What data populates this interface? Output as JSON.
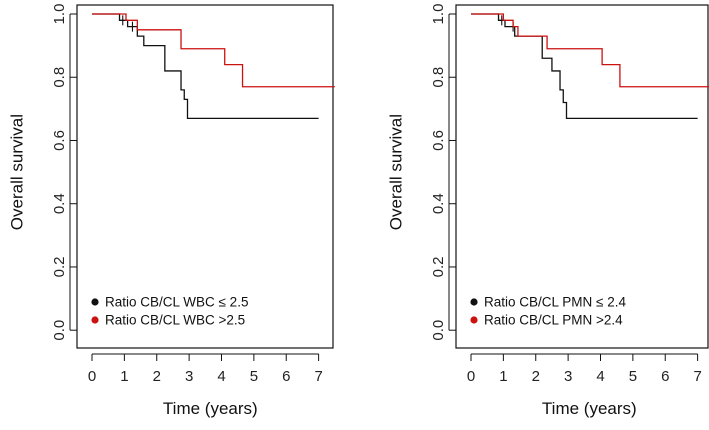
{
  "chart_data": [
    {
      "type": "line",
      "subtype": "kaplan-meier step",
      "title": "",
      "xlabel": "Time (years)",
      "ylabel": "Overall survival",
      "xlim": [
        0,
        7.5
      ],
      "ylim": [
        0,
        1.0
      ],
      "xticks": [
        "0",
        "1",
        "2",
        "3",
        "4",
        "5",
        "6",
        "7"
      ],
      "yticks": [
        "0.0",
        "0.2",
        "0.4",
        "0.6",
        "0.8",
        "1.0"
      ],
      "legend_position": "bottom-left",
      "series": [
        {
          "name": "Ratio CB/CL WBC ≤ 2.5",
          "color": "#111111",
          "steps": [
            {
              "x": 0.0,
              "y": 1.0
            },
            {
              "x": 0.85,
              "y": 0.98
            },
            {
              "x": 1.1,
              "y": 0.96
            },
            {
              "x": 1.4,
              "y": 0.93
            },
            {
              "x": 1.6,
              "y": 0.9
            },
            {
              "x": 2.25,
              "y": 0.82
            },
            {
              "x": 2.75,
              "y": 0.76
            },
            {
              "x": 2.85,
              "y": 0.73
            },
            {
              "x": 2.95,
              "y": 0.67
            },
            {
              "x": 7.0,
              "y": 0.67
            }
          ],
          "censor_marks_x": [
            0.95,
            1.25
          ]
        },
        {
          "name": "Ratio CB/CL WBC >2.5",
          "color": "#cc1111",
          "steps": [
            {
              "x": 0.0,
              "y": 1.0
            },
            {
              "x": 1.05,
              "y": 0.98
            },
            {
              "x": 1.4,
              "y": 0.95
            },
            {
              "x": 2.75,
              "y": 0.89
            },
            {
              "x": 4.1,
              "y": 0.84
            },
            {
              "x": 4.65,
              "y": 0.77
            },
            {
              "x": 7.5,
              "y": 0.77
            }
          ],
          "censor_marks_x": []
        }
      ]
    },
    {
      "type": "line",
      "subtype": "kaplan-meier step",
      "title": "",
      "xlabel": "Time (years)",
      "ylabel": "Overall survival",
      "xlim": [
        0,
        7.5
      ],
      "ylim": [
        0,
        1.0
      ],
      "xticks": [
        "0",
        "1",
        "2",
        "3",
        "4",
        "5",
        "6",
        "7"
      ],
      "yticks": [
        "0.0",
        "0.2",
        "0.4",
        "0.6",
        "0.8",
        "1.0"
      ],
      "legend_position": "bottom-left",
      "series": [
        {
          "name": "Ratio CB/CL PMN ≤ 2.4",
          "color": "#111111",
          "steps": [
            {
              "x": 0.0,
              "y": 1.0
            },
            {
              "x": 0.85,
              "y": 0.98
            },
            {
              "x": 1.05,
              "y": 0.96
            },
            {
              "x": 1.35,
              "y": 0.93
            },
            {
              "x": 2.2,
              "y": 0.86
            },
            {
              "x": 2.5,
              "y": 0.82
            },
            {
              "x": 2.75,
              "y": 0.76
            },
            {
              "x": 2.85,
              "y": 0.72
            },
            {
              "x": 2.95,
              "y": 0.67
            },
            {
              "x": 7.0,
              "y": 0.67
            }
          ],
          "censor_marks_x": [
            0.95,
            1.3
          ]
        },
        {
          "name": "Ratio CB/CL PMN >2.4",
          "color": "#cc1111",
          "steps": [
            {
              "x": 0.0,
              "y": 1.0
            },
            {
              "x": 1.0,
              "y": 0.98
            },
            {
              "x": 1.3,
              "y": 0.96
            },
            {
              "x": 1.45,
              "y": 0.93
            },
            {
              "x": 2.35,
              "y": 0.89
            },
            {
              "x": 4.05,
              "y": 0.84
            },
            {
              "x": 4.6,
              "y": 0.77
            },
            {
              "x": 7.5,
              "y": 0.77
            }
          ],
          "censor_marks_x": []
        }
      ]
    }
  ]
}
